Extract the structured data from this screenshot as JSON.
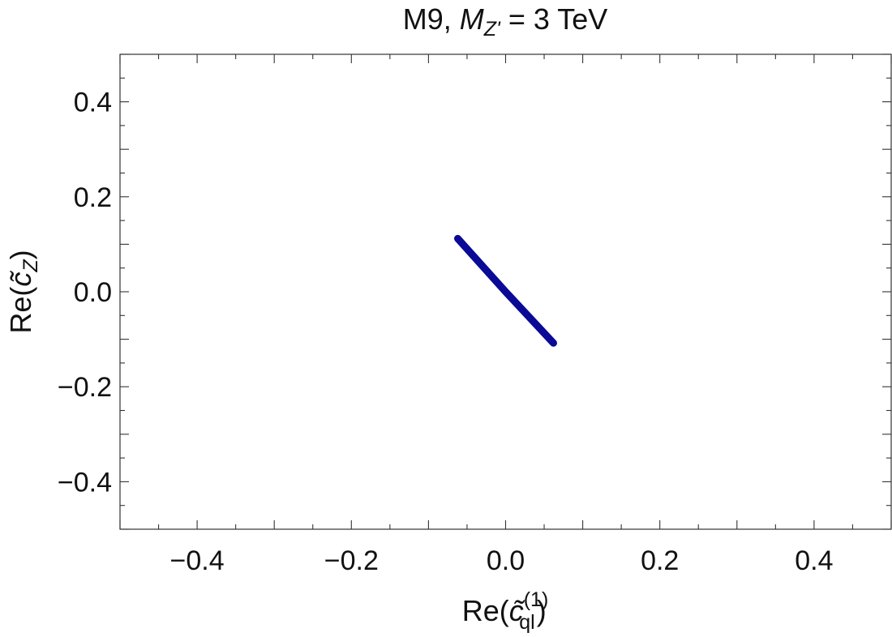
{
  "chart_data": {
    "type": "line",
    "title": {
      "prefix": "M9, ",
      "symbol": "M",
      "subscript": "Z'",
      "suffix": " = 3 TeV"
    },
    "xlabel": {
      "prefix": "Re(",
      "symbol": "c̃",
      "subscript": "ql",
      "superscript": "(1)",
      "suffix": ")"
    },
    "ylabel": {
      "prefix": "Re(",
      "symbol": "c̃",
      "subscript": "Z",
      "suffix": ")"
    },
    "xlim": [
      -0.5,
      0.5
    ],
    "ylim": [
      -0.5,
      0.5
    ],
    "x_ticks": [
      -0.4,
      -0.2,
      0.0,
      0.2,
      0.4
    ],
    "x_tick_labels": [
      "−0.4",
      "−0.2",
      "0.0",
      "0.2",
      "0.4"
    ],
    "y_ticks": [
      0.4,
      0.2,
      0.0,
      -0.2,
      -0.4
    ],
    "y_tick_labels": [
      "0.4",
      "0.2",
      "0.0",
      "−0.2",
      "−0.4"
    ],
    "grid": false,
    "series": [
      {
        "color": "#0a0a96",
        "x": [
          -0.062,
          0.0,
          0.062
        ],
        "y": [
          0.112,
          0.0,
          -0.108
        ]
      }
    ]
  }
}
